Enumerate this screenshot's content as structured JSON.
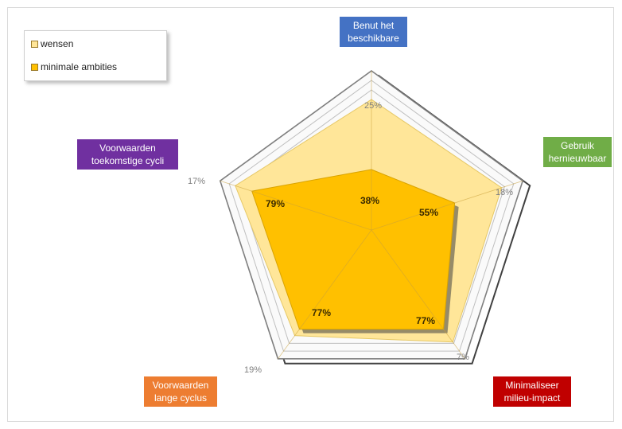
{
  "chart_data": {
    "type": "radar",
    "axes": [
      {
        "label": "Benut het beschikbare",
        "label_lines": [
          "Benut het",
          "beschikbare"
        ],
        "label_color": "#4472C4",
        "axis_pct": "25%",
        "minimale_ambities_label": "38%"
      },
      {
        "label": "Gebruik hernieuwbaar",
        "label_lines": [
          "Gebruik",
          "hernieuwbaar"
        ],
        "label_color": "#70AD47",
        "axis_pct": "18%",
        "minimale_ambities_label": "55%"
      },
      {
        "label": "Minimaliseer milieu-impact",
        "label_lines": [
          "Minimaliseer",
          "milieu-impact"
        ],
        "label_color": "#C00000",
        "axis_pct": "7%",
        "minimale_ambities_label": "77%"
      },
      {
        "label": "Voorwaarden lange cyclus",
        "label_lines": [
          "Voorwaarden",
          "lange cyclus"
        ],
        "label_color": "#ED7D31",
        "axis_pct": "19%",
        "minimale_ambities_label": "77%"
      },
      {
        "label": "Voorwaarden toekomstige cycli",
        "label_lines": [
          "Voorwaarden",
          "toekomstige cycli"
        ],
        "label_color": "#7030A0",
        "axis_pct": "17%",
        "minimale_ambities_label": "79%"
      }
    ],
    "series": [
      {
        "name": "wensen",
        "color": "#FFE699",
        "values": [
          0.82,
          0.86,
          0.87,
          0.82,
          0.9
        ]
      },
      {
        "name": "minimale ambities",
        "color": "#FFC000",
        "values": [
          0.38,
          0.55,
          0.77,
          0.77,
          0.79
        ]
      }
    ],
    "range": [
      0,
      1
    ],
    "grid": true,
    "legend_position": "top-left"
  },
  "legend": {
    "items": [
      {
        "label": "wensen",
        "color": "#FFE699"
      },
      {
        "label": "minimale ambities",
        "color": "#FFC000"
      }
    ]
  }
}
